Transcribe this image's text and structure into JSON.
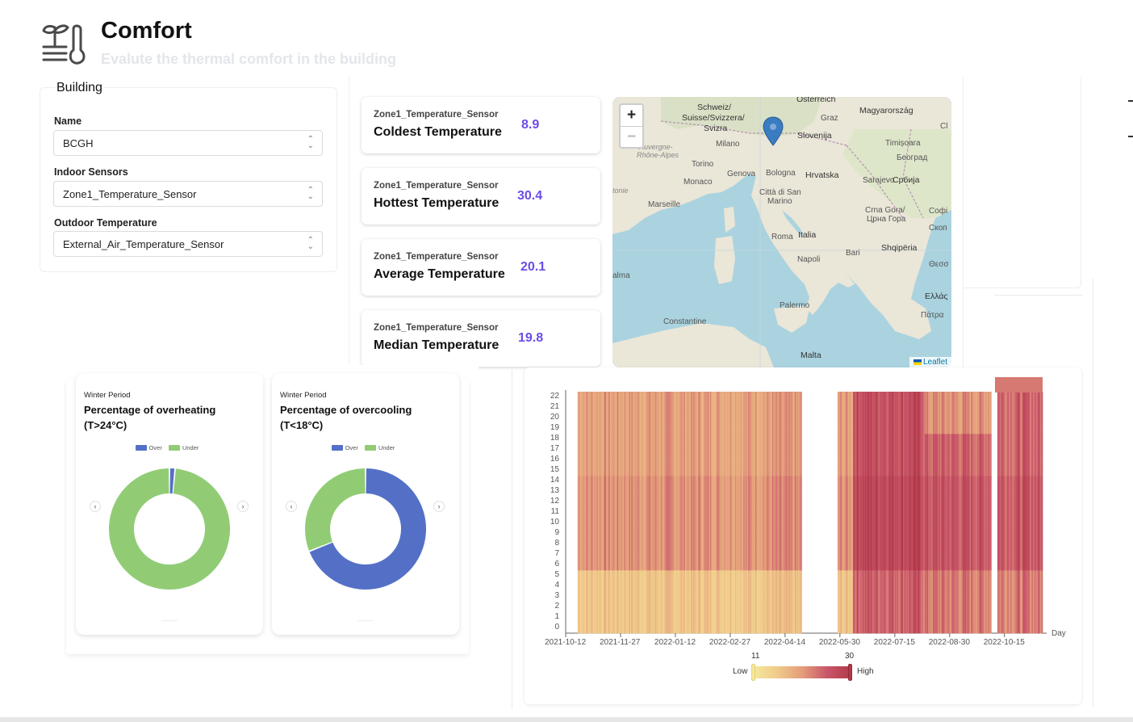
{
  "header": {
    "title": "Comfort",
    "subtitle": "Evalute the thermal comfort in the building"
  },
  "building": {
    "legend": "Building",
    "name_label": "Name",
    "name_value": "BCGH",
    "indoor_label": "Indoor Sensors",
    "indoor_value": "Zone1_Temperature_Sensor",
    "outdoor_label": "Outdoor Temperature",
    "outdoor_value": "External_Air_Temperature_Sensor"
  },
  "stats": [
    {
      "sensor": "Zone1_Temperature_Sensor",
      "name": "Coldest Temperature",
      "value": "8.9"
    },
    {
      "sensor": "Zone1_Temperature_Sensor",
      "name": "Hottest Temperature",
      "value": "30.4"
    },
    {
      "sensor": "Zone1_Temperature_Sensor",
      "name": "Average Temperature",
      "value": "20.1"
    },
    {
      "sensor": "Zone1_Temperature_Sensor",
      "name": "Median Temperature",
      "value": "19.8"
    }
  ],
  "map": {
    "zoom_in": "+",
    "zoom_out": "−",
    "attribution": "Leaflet",
    "labels": {
      "osterreich": "Österreich",
      "magyar": "Magyarország",
      "schweiz": "Schweiz/",
      "suisse": "Suisse/Svizzera/",
      "svizra": "Svizra",
      "graz": "Graz",
      "slovenija": "Slovenija",
      "milano": "Milano",
      "timisoara": "Timișoara",
      "beograd": "Београд",
      "auvergne": "Auvergne-",
      "rhone": "Rhône-Alpes",
      "torino": "Torino",
      "genova": "Genova",
      "bologna": "Bologna",
      "hrvatska": "Hrvatska",
      "sarajevo": "Sarajevo",
      "srbija": "Србија",
      "monaco": "Monaco",
      "citta": "Città di San",
      "marino": "Marino",
      "marseille": "Marseille",
      "crna": "Crna Gora/",
      "crna2": "Црна Гора",
      "roma": "Roma",
      "italia": "Italia",
      "shqiperia": "Shqipëria",
      "napoli": "Napoli",
      "bari": "Bari",
      "palermo": "Palermo",
      "ellas": "Ελλάς",
      "patra": "Πάτρα",
      "constantine": "Constantine",
      "malta": "Malta",
      "palma": "alma",
      "sofia": "Софі",
      "skopje": "Скоп",
      "thess": "Θεσσ",
      "cl": "Cl",
      "tonie": "tonie"
    }
  },
  "donuts": [
    {
      "period": "Winter Period",
      "title": "Percentage of overheating (T>24°C)",
      "legend": [
        "Over",
        "Under"
      ],
      "values": {
        "Over": 1.5,
        "Under": 98.5
      }
    },
    {
      "period": "Winter Period",
      "title": "Percentage of overcooling (T<18°C)",
      "legend": [
        "Over",
        "Under"
      ],
      "values": {
        "Over": 69,
        "Under": 31
      }
    }
  ],
  "colors": {
    "over": "#5470c6",
    "under": "#91cc75",
    "accent": "#6c4ce6"
  },
  "chart_data": {
    "type": "heatmap",
    "x_label": "Day",
    "x_ticks": [
      "2021-10-12",
      "2021-11-27",
      "2022-01-12",
      "2022-02-27",
      "2022-04-14",
      "2022-05-30",
      "2022-07-15",
      "2022-08-30",
      "2022-10-15"
    ],
    "y_ticks": [
      "0",
      "1",
      "2",
      "3",
      "4",
      "5",
      "6",
      "7",
      "8",
      "9",
      "10",
      "11",
      "12",
      "13",
      "14",
      "15",
      "16",
      "17",
      "18",
      "19",
      "20",
      "21",
      "22"
    ],
    "visual_map": {
      "min": 11,
      "max": 30,
      "min_label": "11",
      "max_label": "30",
      "low_text": "Low",
      "high_text": "High"
    }
  }
}
